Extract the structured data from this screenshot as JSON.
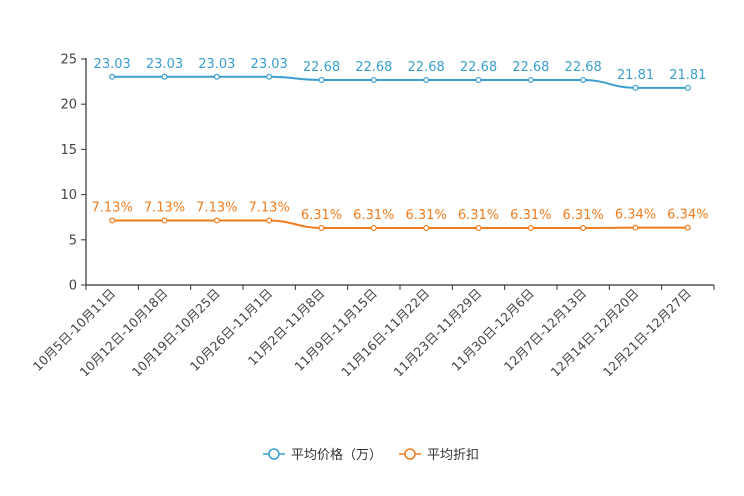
{
  "chart_data": {
    "type": "line",
    "title": "",
    "xlabel": "",
    "ylabel": "",
    "ylim": [
      0,
      25
    ],
    "yticks": [
      0,
      5,
      10,
      15,
      20,
      25
    ],
    "grid": false,
    "legend_position": "bottom-center",
    "categories": [
      "10月5日-10月11日",
      "10月12日-10月18日",
      "10月19日-10月25日",
      "10月26日-11月1日",
      "11月2日-11月8日",
      "11月9日-11月15日",
      "11月16日-11月22日",
      "11月23日-11月29日",
      "11月30日-12月6日",
      "12月7日-12月13日",
      "12月14日-12月20日",
      "12月21日-12月27日"
    ],
    "series": [
      {
        "name": "平均价格（万）",
        "color": "#3a9fce",
        "values": [
          23.03,
          23.03,
          23.03,
          23.03,
          22.68,
          22.68,
          22.68,
          22.68,
          22.68,
          22.68,
          21.81,
          21.81
        ],
        "labels": [
          "23.03",
          "23.03",
          "23.03",
          "23.03",
          "22.68",
          "22.68",
          "22.68",
          "22.68",
          "22.68",
          "22.68",
          "21.81",
          "21.81"
        ]
      },
      {
        "name": "平均折扣",
        "color": "#f07c1e",
        "values": [
          7.13,
          7.13,
          7.13,
          7.13,
          6.31,
          6.31,
          6.31,
          6.31,
          6.31,
          6.31,
          6.34,
          6.34
        ],
        "labels": [
          "7.13%",
          "7.13%",
          "7.13%",
          "7.13%",
          "6.31%",
          "6.31%",
          "6.31%",
          "6.31%",
          "6.31%",
          "6.31%",
          "6.34%",
          "6.34%"
        ]
      }
    ]
  }
}
